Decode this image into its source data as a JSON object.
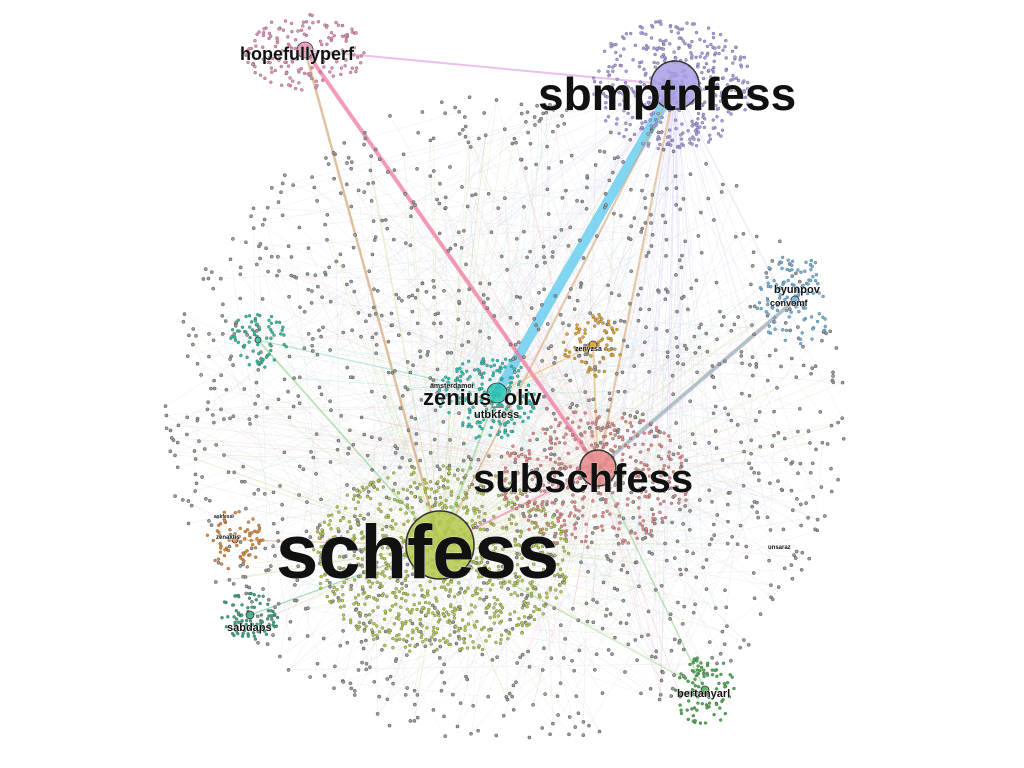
{
  "graph": {
    "communities": [
      {
        "id": "schfess",
        "label": "schfess",
        "color": "#b5c94f"
      },
      {
        "id": "subschfess",
        "label": "subschfess",
        "color": "#e88a8a"
      },
      {
        "id": "sbmptnfess",
        "label": "sbmptnfess",
        "color": "#a99ee6"
      },
      {
        "id": "zenius_oliv",
        "label": "zenius_oliv",
        "color": "#2ec4b6"
      },
      {
        "id": "hopefullyperf",
        "label": "hopefullyperf",
        "color": "#e690b8"
      },
      {
        "id": "byunpov",
        "label": "byunpov",
        "color": "#6fb6e0"
      },
      {
        "id": "bertanyarl",
        "label": "bertanyarl",
        "color": "#4caf50"
      },
      {
        "id": "sabdaps",
        "label": "sabdaps",
        "color": "#3aa57a"
      },
      {
        "id": "zenyzsa",
        "label": "zenyzsa",
        "color": "#e0a530"
      },
      {
        "id": "pink-orange",
        "label": "",
        "color": "#e08a3c"
      },
      {
        "id": "teal-left",
        "label": "",
        "color": "#2fbf9a"
      }
    ],
    "labels": {
      "schfess": "schfess",
      "subschfess": "subschfess",
      "sbmptnfess": "sbmptnfess",
      "zenius_oliv": "zenius_oliv",
      "utbkfess": "utbkfess",
      "amsterdamoi": "amsterdamoi",
      "hopefullyperf": "hopefullyperf",
      "byunpov": "byunpov",
      "convomf": "convomf",
      "bertanyarl": "bertanyarl",
      "sabdaps": "sabdaps",
      "zenyzsa": "zenyzsa",
      "pinkgrass": "zenaktis",
      "anifess": "askfess",
      "unsaraz": "unsaraz"
    },
    "edge_colors": {
      "pink": "#f07aa0",
      "blue": "#6ccff0",
      "tan": "#d7a878",
      "green": "#8dd18a",
      "purple": "#b9a6e6",
      "gray": "#9aa0a6"
    }
  }
}
